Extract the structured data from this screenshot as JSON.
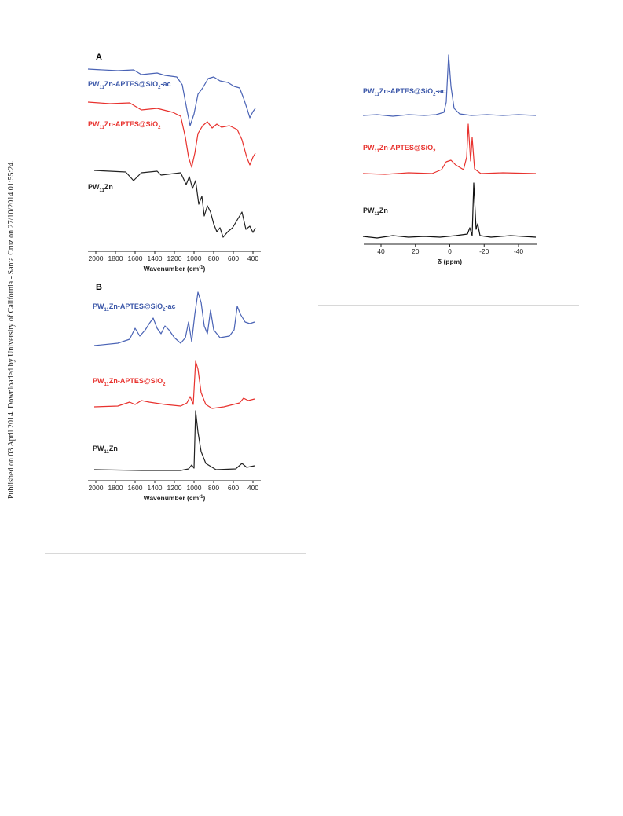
{
  "side_note": "Published on 03 April 2014. Downloaded by University of California - Santa Cruz on 27/10/2014 01:55:24.",
  "figures": [
    {
      "panel": "A",
      "labels": [
        [
          "PW",
          "11",
          "Zn-APTES@SiO",
          "2",
          "-ac"
        ],
        [
          "PW",
          "11",
          "Zn-APTES@SiO",
          "2"
        ],
        [
          "PW",
          "11",
          "Zn"
        ]
      ],
      "xticks": [
        2000,
        1800,
        1600,
        1400,
        1200,
        1000,
        800,
        600,
        400
      ],
      "xlabel": [
        "Wavenumber (cm",
        "-1",
        ")"
      ]
    },
    {
      "panel": "B",
      "labels": [
        [
          "PW",
          "11",
          "Zn-APTES@SiO",
          "2",
          "-ac"
        ],
        [
          "PW",
          "11",
          "Zn-APTES@SiO",
          "2"
        ],
        [
          "PW",
          "11",
          "Zn"
        ]
      ],
      "xticks": [
        2000,
        1800,
        1600,
        1400,
        1200,
        1000,
        800,
        600,
        400
      ],
      "xlabel": [
        "Wavenumber (cm",
        "-1",
        ")"
      ]
    },
    {
      "labels": [
        [
          "PW",
          "11",
          "Zn-APTES@SiO",
          "2",
          "-ac"
        ],
        [
          "PW",
          "11",
          "Zn-APTES@SiO",
          "2"
        ],
        [
          "PW",
          "11",
          "Zn"
        ]
      ],
      "xticks": [
        40,
        20,
        0,
        -20,
        -40
      ],
      "xlabel": "δ (ppm)"
    }
  ]
}
